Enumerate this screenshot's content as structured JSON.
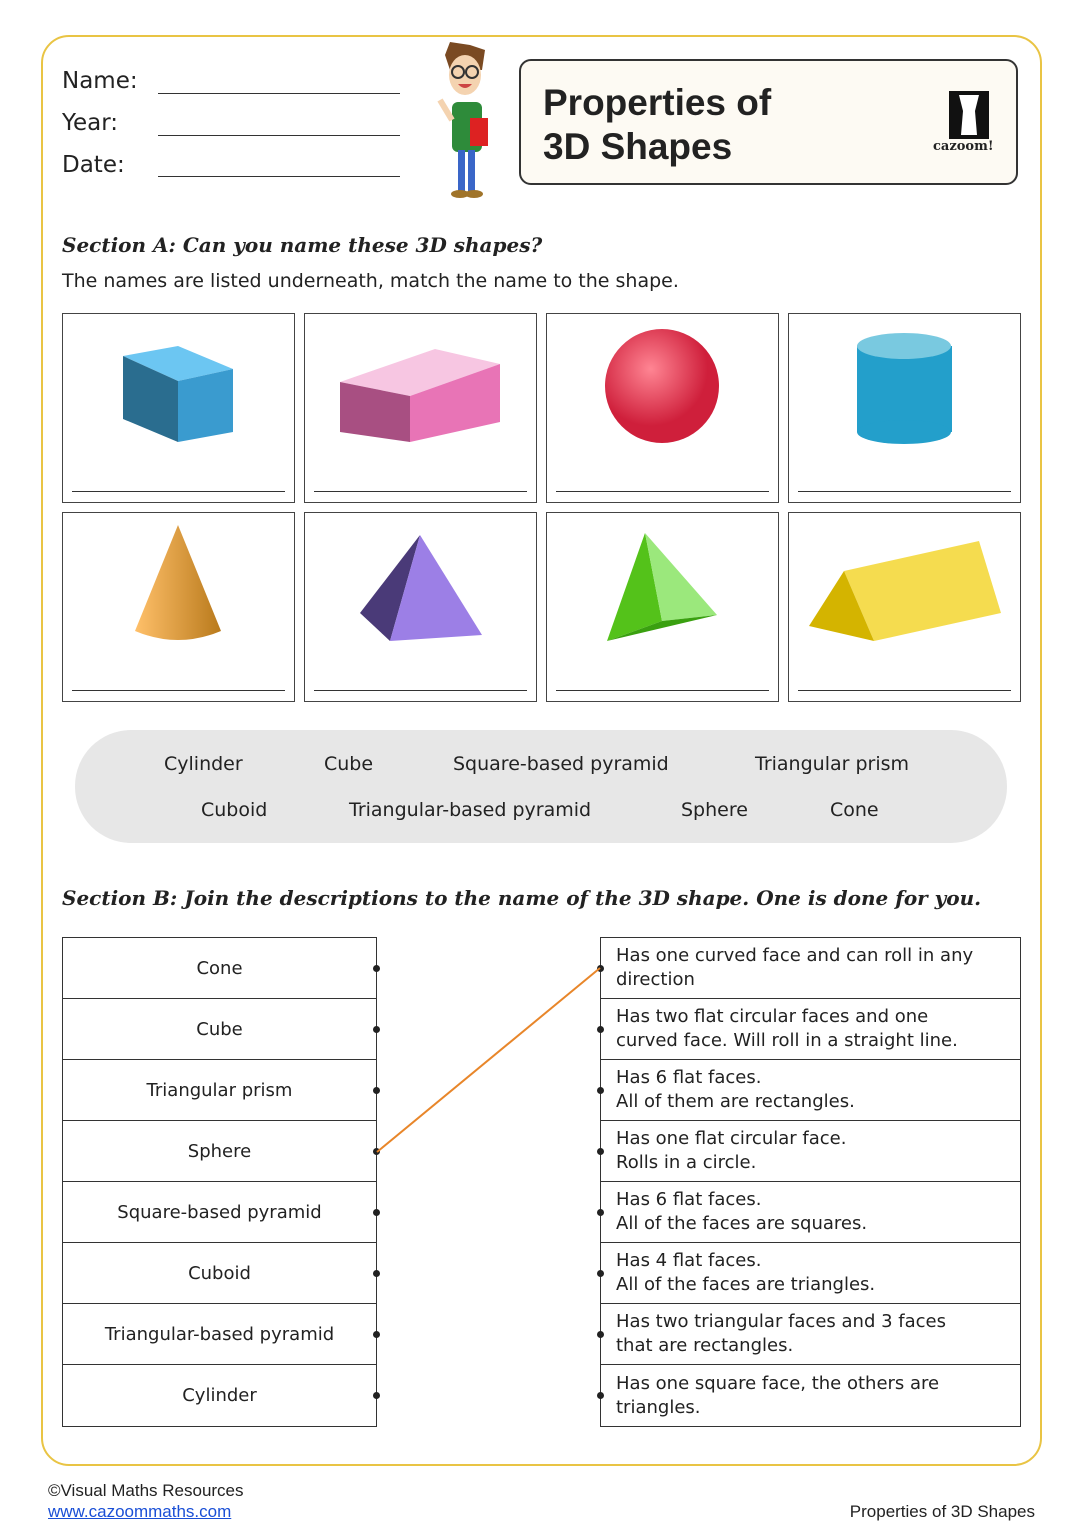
{
  "header": {
    "name_label": "Name:",
    "year_label": "Year:",
    "date_label": "Date:",
    "title_line1": "Properties of",
    "title_line2": "3D Shapes",
    "logo_text": "cazoom!"
  },
  "section_a": {
    "heading": "Section A:  Can you name these 3D shapes?",
    "instruction": "The names are listed underneath, match the name to the shape.",
    "shapes": [
      "cube-icon",
      "cuboid-icon",
      "sphere-icon",
      "cylinder-icon",
      "cone-icon",
      "square-based-pyramid-icon",
      "triangular-based-pyramid-icon",
      "triangular-prism-icon"
    ],
    "word_bank": [
      "Cylinder",
      "Cube",
      "Square-based pyramid",
      "Triangular prism",
      "Cuboid",
      "Triangular-based pyramid",
      "Sphere",
      "Cone"
    ]
  },
  "section_b": {
    "heading": "Section B:  Join the descriptions to the name of the 3D shape. One is done for you.",
    "names": [
      "Cone",
      "Cube",
      "Triangular prism",
      "Sphere",
      "Square-based pyramid",
      "Cuboid",
      "Triangular-based pyramid",
      "Cylinder"
    ],
    "descriptions": [
      [
        "Has one curved face and can roll in any",
        "direction"
      ],
      [
        "Has two flat circular faces and one",
        "curved face. Will roll in a straight line."
      ],
      [
        "Has 6 flat faces.",
        "All of them are rectangles."
      ],
      [
        "Has one flat circular face.",
        "Rolls in a circle."
      ],
      [
        "Has 6 flat faces.",
        "All of the faces are squares."
      ],
      [
        "Has 4 flat faces.",
        "All of the faces are triangles."
      ],
      [
        "Has two triangular faces and 3 faces",
        "that are rectangles."
      ],
      [
        "Has one square face, the others are",
        "triangles."
      ]
    ],
    "example_match": {
      "name": "Sphere",
      "description_index": 0
    },
    "line_color": "#e8862a"
  },
  "footer": {
    "copyright": "©Visual Maths Resources",
    "link": "www.cazoommaths.com",
    "page_title": "Properties of 3D Shapes"
  },
  "colors": {
    "frame": "#e9c444",
    "link": "#1a4fd6"
  }
}
